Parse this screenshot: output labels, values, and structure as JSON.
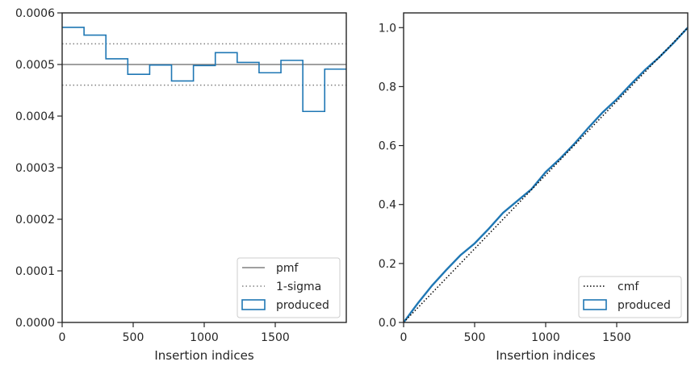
{
  "chart_data": [
    {
      "type": "step",
      "xlabel": "Insertion indices",
      "ylabel": "",
      "xlim": [
        0,
        2000
      ],
      "ylim": [
        0,
        0.0006
      ],
      "xticks": [
        0,
        500,
        1000,
        1500
      ],
      "xtick_labels": [
        "0",
        "500",
        "1000",
        "1500"
      ],
      "yticks": [
        0,
        0.0001,
        0.0002,
        0.0003,
        0.0004,
        0.0005,
        0.0006
      ],
      "ytick_labels": [
        "0.0000",
        "0.0001",
        "0.0002",
        "0.0003",
        "0.0004",
        "0.0005",
        "0.0006"
      ],
      "grid": false,
      "legend_position": "lower-right",
      "pmf": {
        "name": "pmf",
        "value": 0.0005,
        "color": "#808080"
      },
      "sigma": {
        "name": "1-sigma",
        "upper": 0.00054,
        "lower": 0.00046,
        "color": "#808080"
      },
      "series": [
        {
          "name": "produced",
          "color": "#1f77b4",
          "bin_edges": [
            0,
            154,
            308,
            462,
            616,
            770,
            924,
            1078,
            1232,
            1386,
            1540,
            1694,
            1848,
            2000
          ],
          "values": [
            0.000572,
            0.000557,
            0.000511,
            0.000481,
            0.000499,
            0.000468,
            0.000498,
            0.000523,
            0.000504,
            0.000484,
            0.000508,
            0.000409,
            0.000491
          ]
        }
      ]
    },
    {
      "type": "line",
      "xlabel": "Insertion indices",
      "ylabel": "",
      "xlim": [
        0,
        2000
      ],
      "ylim": [
        0,
        1.05
      ],
      "xticks": [
        0,
        500,
        1000,
        1500
      ],
      "xtick_labels": [
        "0",
        "500",
        "1000",
        "1500"
      ],
      "yticks": [
        0,
        0.2,
        0.4,
        0.6,
        0.8,
        1.0
      ],
      "ytick_labels": [
        "0.0",
        "0.2",
        "0.4",
        "0.6",
        "0.8",
        "1.0"
      ],
      "grid": false,
      "legend_position": "lower-right",
      "series": [
        {
          "name": "cmf",
          "color": "#000000",
          "x": [
            0,
            2000
          ],
          "values": [
            0,
            1.0
          ]
        },
        {
          "name": "produced",
          "color": "#1f77b4",
          "x": [
            0,
            100,
            200,
            300,
            400,
            500,
            600,
            700,
            800,
            900,
            1000,
            1100,
            1200,
            1300,
            1400,
            1500,
            1600,
            1700,
            1800,
            1900,
            2000
          ],
          "values": [
            0,
            0.065,
            0.125,
            0.178,
            0.228,
            0.268,
            0.318,
            0.372,
            0.412,
            0.452,
            0.51,
            0.555,
            0.605,
            0.66,
            0.712,
            0.757,
            0.808,
            0.857,
            0.9,
            0.948,
            1.0
          ]
        }
      ]
    }
  ]
}
